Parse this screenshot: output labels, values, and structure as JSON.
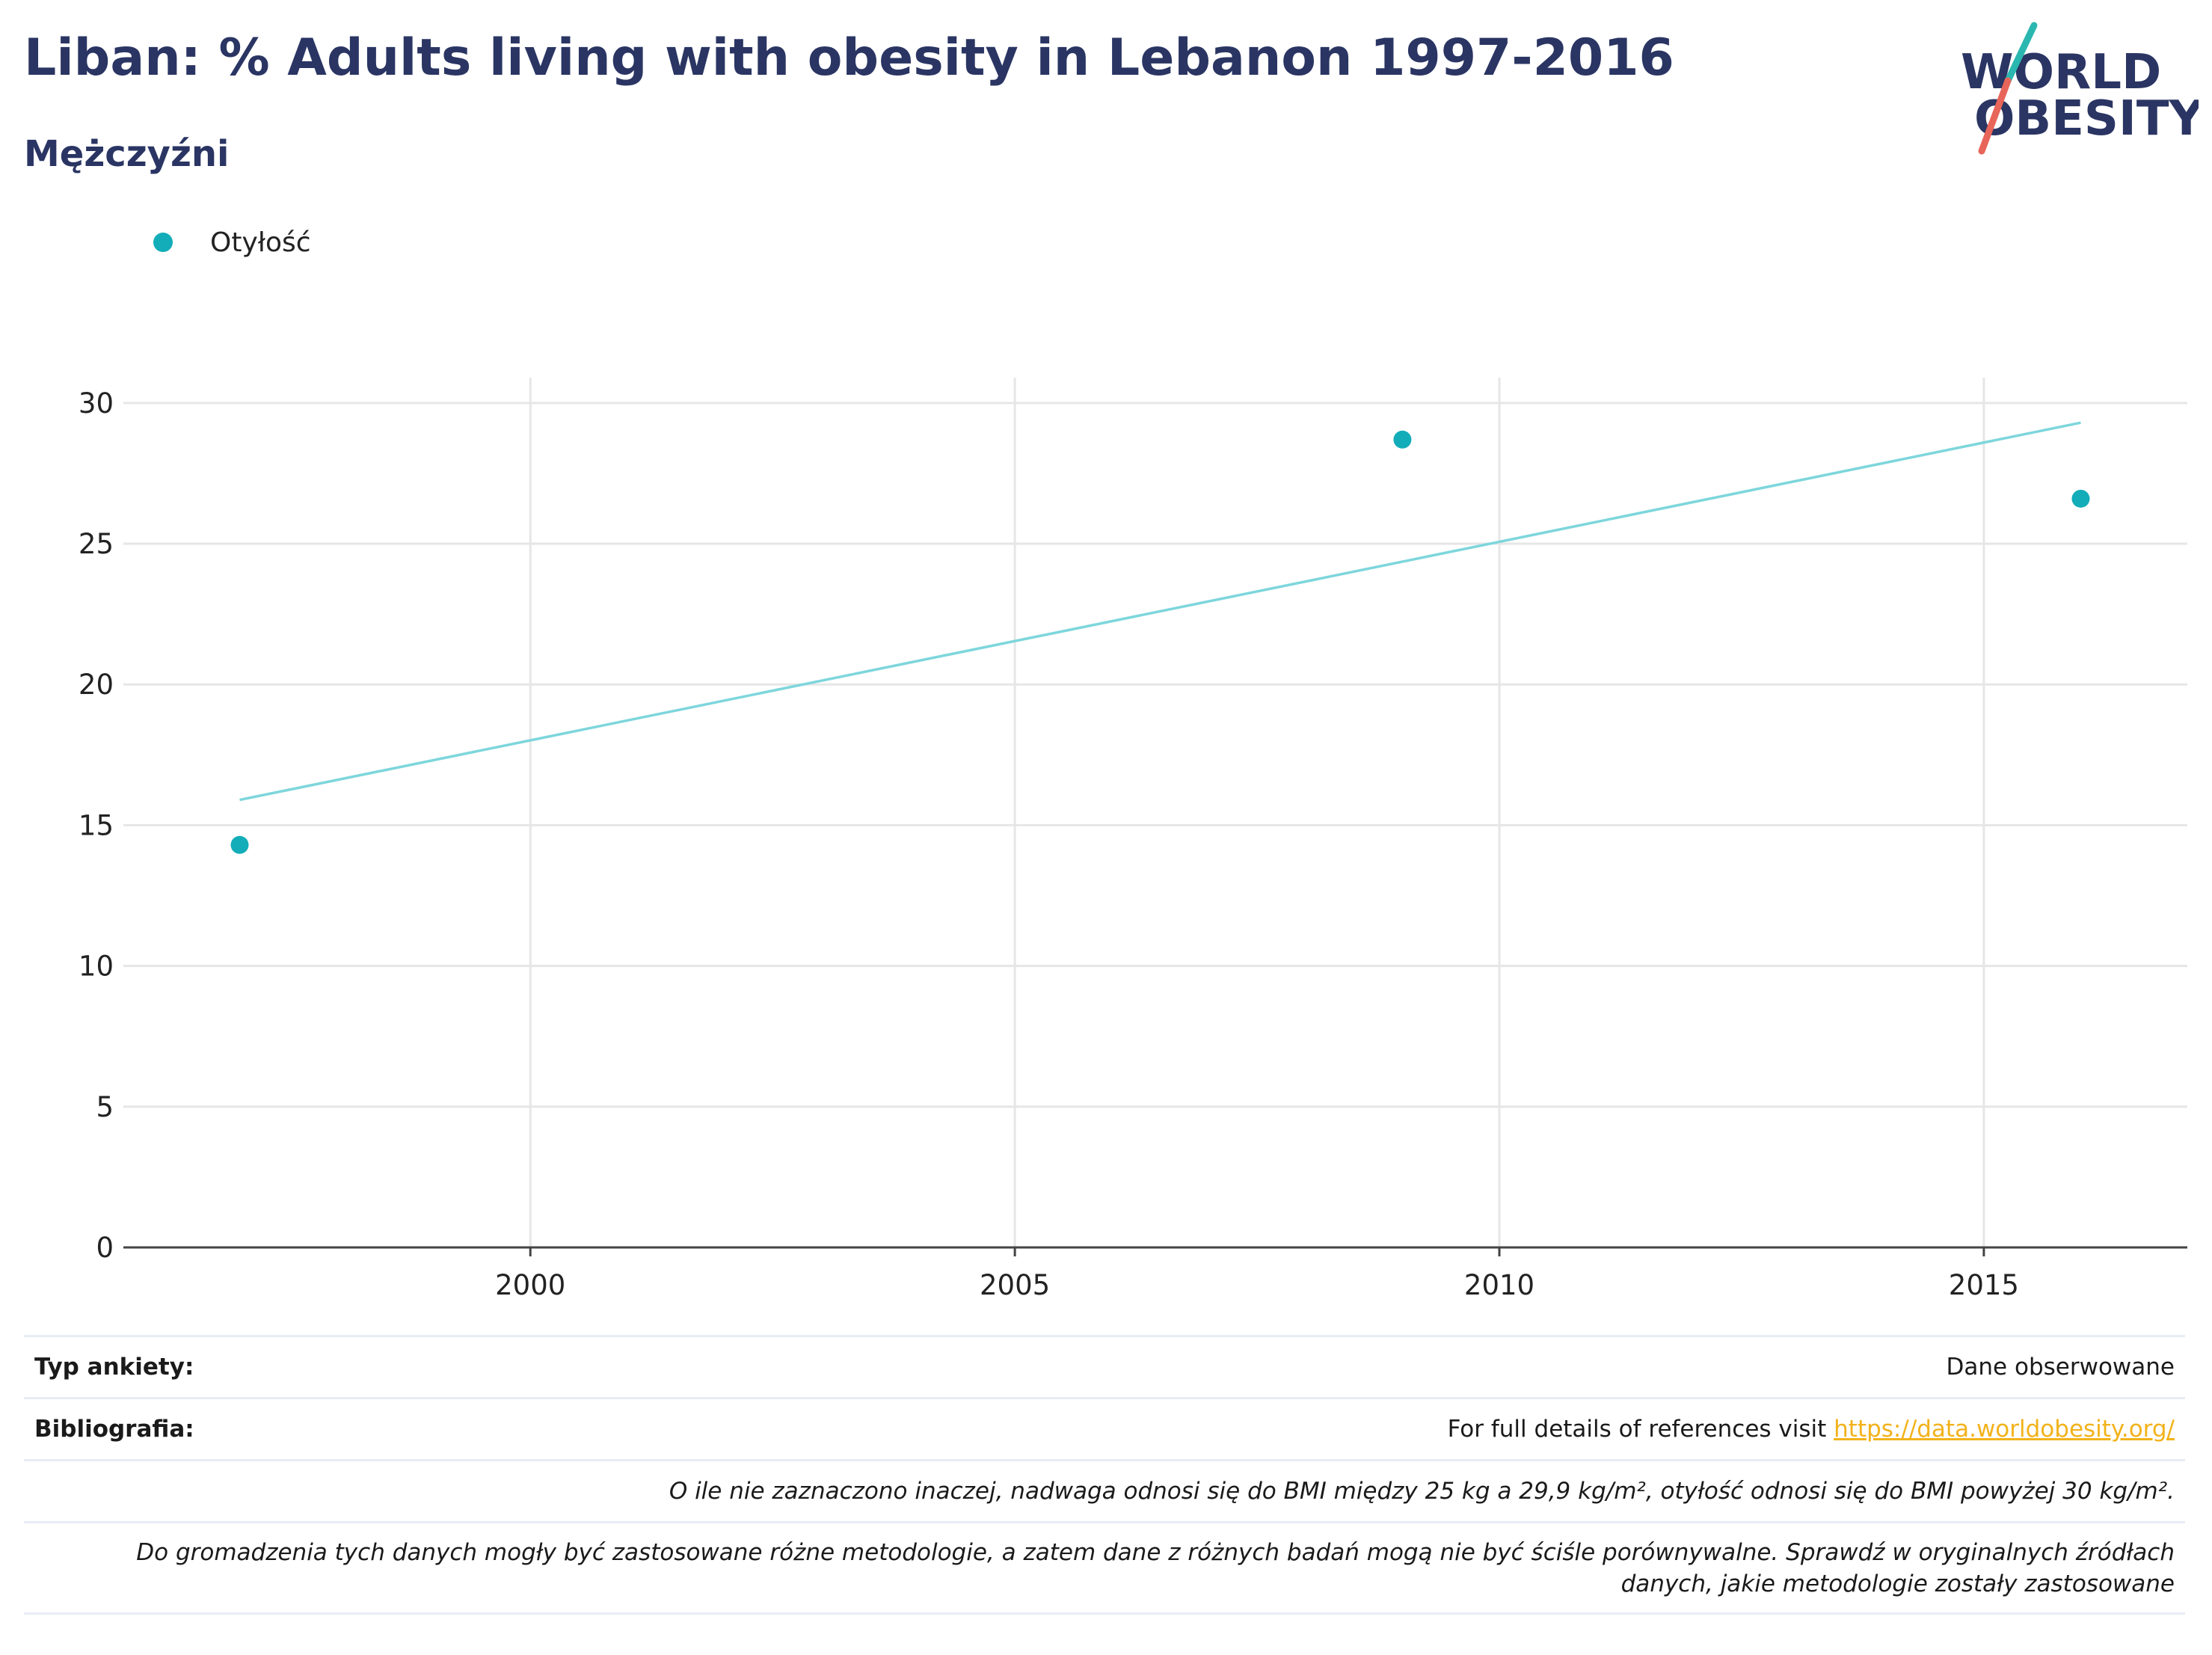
{
  "header": {
    "title": "Liban: % Adults living with obesity in Lebanon 1997-2016",
    "subtitle": "Mężczyźni"
  },
  "logo": {
    "line1": "WORLD",
    "line2": "OBESITY"
  },
  "legend": {
    "label": "Otyłość",
    "color": "#12adb8"
  },
  "chart_data": {
    "type": "scatter",
    "x_ticks": [
      "2000",
      "2005",
      "2010",
      "2015"
    ],
    "y_ticks": [
      "0",
      "5",
      "10",
      "15",
      "20",
      "25",
      "30"
    ],
    "xlim": [
      1995.8,
      2017.1
    ],
    "ylim": [
      0,
      30.9
    ],
    "grid": true,
    "legend_position": "top-left",
    "series": [
      {
        "name": "Otyłość",
        "color": "#12adb8",
        "points": [
          {
            "x": 1997,
            "y": 14.3
          },
          {
            "x": 2009,
            "y": 28.7
          },
          {
            "x": 2016,
            "y": 26.6
          }
        ]
      }
    ],
    "trendline": {
      "color": "#7dd6dc",
      "points": [
        {
          "x": 1997,
          "y": 15.9
        },
        {
          "x": 2016,
          "y": 29.3
        }
      ]
    }
  },
  "info": {
    "survey_type_label": "Typ ankiety:",
    "survey_type_value": "Dane obserwowane",
    "bibliography_label": "Bibliografia:",
    "bibliography_text": "For full details of references visit ",
    "bibliography_link": "https://data.worldobesity.org/",
    "note1": "O ile nie zaznaczono inaczej, nadwaga odnosi się do BMI między 25 kg a 29,9 kg/m², otyłość odnosi się do BMI powyżej 30 kg/m².",
    "note2_line1": "Do gromadzenia tych danych mogły być zastosowane różne metodologie, a zatem dane z różnych badań mogą nie być ściśle porównywalne. Sprawdź w oryginalnych źródłach",
    "note2_line2": "danych, jakie metodologie zostały zastosowane"
  }
}
